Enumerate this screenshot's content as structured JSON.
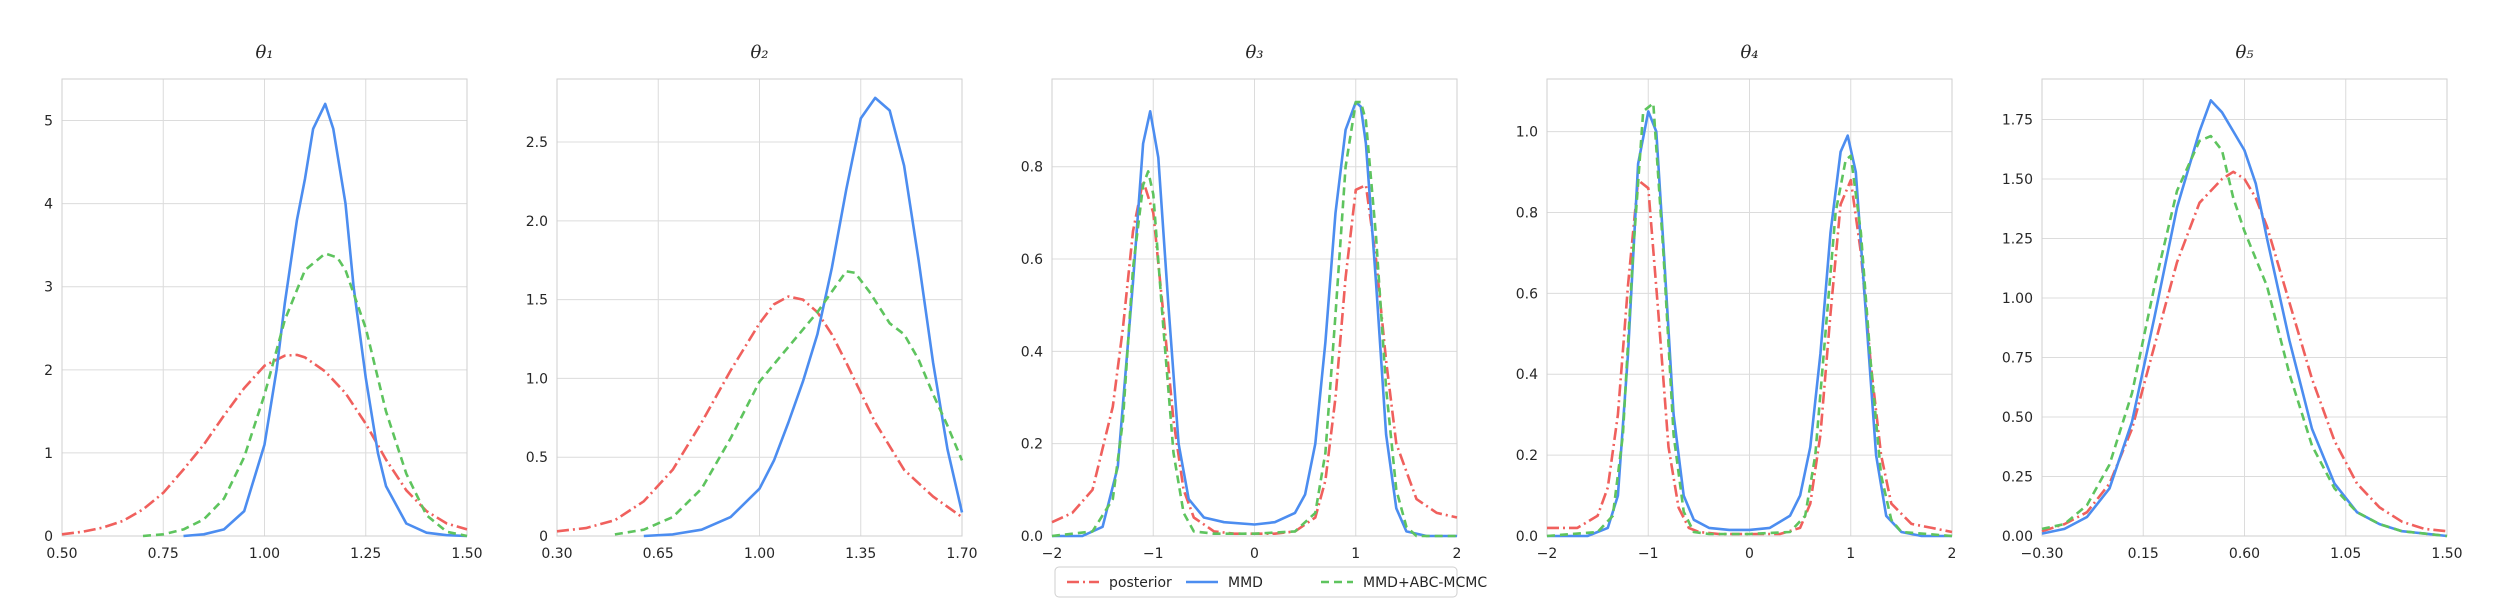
{
  "figure": {
    "background": "#ffffff",
    "grid_color": "#dcdcdc",
    "frame_color": "#cfcfcf"
  },
  "legend": {
    "placement": "bottom-center",
    "entries": [
      {
        "label": "posterior",
        "color": "#f0605d",
        "style": "dashdot"
      },
      {
        "label": "MMD",
        "color": "#4c8df0",
        "style": "solid"
      },
      {
        "label": "MMD+ABC-MCMC",
        "color": "#5ec45e",
        "style": "dashed"
      }
    ]
  },
  "chart_data": [
    {
      "type": "line",
      "title": "θ₁",
      "grid": true,
      "xlim": [
        0.5,
        1.5
      ],
      "ylim": [
        0,
        5.5
      ],
      "xticks": [
        0.5,
        0.75,
        1.0,
        1.25,
        1.5
      ],
      "xtick_labels": [
        "0.50",
        "0.75",
        "1.00",
        "1.25",
        "1.50"
      ],
      "yticks": [
        0,
        1,
        2,
        3,
        4,
        5
      ],
      "ytick_labels": [
        "0",
        "1",
        "2",
        "3",
        "4",
        "5"
      ],
      "series": [
        {
          "name": "posterior",
          "x": [
            0.5,
            0.55,
            0.6,
            0.65,
            0.7,
            0.75,
            0.8,
            0.85,
            0.9,
            0.95,
            1.0,
            1.05,
            1.08,
            1.1,
            1.15,
            1.2,
            1.25,
            1.3,
            1.35,
            1.4,
            1.45,
            1.5
          ],
          "y": [
            0.02,
            0.05,
            0.1,
            0.18,
            0.32,
            0.52,
            0.8,
            1.1,
            1.45,
            1.78,
            2.05,
            2.17,
            2.18,
            2.15,
            1.98,
            1.72,
            1.35,
            0.92,
            0.55,
            0.3,
            0.15,
            0.08
          ]
        },
        {
          "name": "MMD",
          "x": [
            0.8,
            0.85,
            0.9,
            0.95,
            1.0,
            1.03,
            1.05,
            1.08,
            1.1,
            1.12,
            1.15,
            1.17,
            1.2,
            1.22,
            1.25,
            1.28,
            1.3,
            1.35,
            1.4,
            1.45,
            1.5
          ],
          "y": [
            0.0,
            0.02,
            0.08,
            0.3,
            1.1,
            2.0,
            2.8,
            3.8,
            4.3,
            4.9,
            5.2,
            4.9,
            4.0,
            3.0,
            1.9,
            1.0,
            0.6,
            0.15,
            0.04,
            0.01,
            0.0
          ]
        },
        {
          "name": "MMD+ABC-MCMC",
          "x": [
            0.7,
            0.75,
            0.8,
            0.85,
            0.9,
            0.95,
            1.0,
            1.05,
            1.1,
            1.15,
            1.18,
            1.2,
            1.25,
            1.3,
            1.35,
            1.4,
            1.45,
            1.5
          ],
          "y": [
            0.0,
            0.02,
            0.08,
            0.2,
            0.45,
            0.95,
            1.7,
            2.6,
            3.2,
            3.4,
            3.35,
            3.2,
            2.5,
            1.5,
            0.75,
            0.25,
            0.05,
            0.0
          ]
        }
      ]
    },
    {
      "type": "line",
      "title": "θ₂",
      "grid": true,
      "xlim": [
        0.3,
        1.7
      ],
      "ylim": [
        0,
        2.9
      ],
      "xticks": [
        0.3,
        0.65,
        1.0,
        1.35,
        1.7
      ],
      "xtick_labels": [
        "0.30",
        "0.65",
        "1.00",
        "1.35",
        "1.70"
      ],
      "yticks": [
        0,
        0.5,
        1.0,
        1.5,
        2.0,
        2.5
      ],
      "ytick_labels": [
        "0",
        "0.5",
        "1.0",
        "1.5",
        "2.0",
        "2.5"
      ],
      "series": [
        {
          "name": "posterior",
          "x": [
            0.3,
            0.4,
            0.5,
            0.6,
            0.7,
            0.8,
            0.9,
            1.0,
            1.05,
            1.1,
            1.15,
            1.2,
            1.25,
            1.3,
            1.4,
            1.5,
            1.6,
            1.7
          ],
          "y": [
            0.03,
            0.05,
            0.1,
            0.22,
            0.42,
            0.72,
            1.05,
            1.35,
            1.47,
            1.52,
            1.5,
            1.42,
            1.28,
            1.1,
            0.72,
            0.42,
            0.25,
            0.12
          ]
        },
        {
          "name": "MMD",
          "x": [
            0.6,
            0.7,
            0.8,
            0.9,
            1.0,
            1.05,
            1.1,
            1.15,
            1.2,
            1.25,
            1.3,
            1.35,
            1.4,
            1.45,
            1.5,
            1.55,
            1.6,
            1.65,
            1.7
          ],
          "y": [
            0.0,
            0.01,
            0.04,
            0.12,
            0.3,
            0.48,
            0.72,
            0.98,
            1.28,
            1.7,
            2.2,
            2.65,
            2.78,
            2.7,
            2.35,
            1.75,
            1.1,
            0.55,
            0.15
          ]
        },
        {
          "name": "MMD+ABC-MCMC",
          "x": [
            0.5,
            0.6,
            0.7,
            0.8,
            0.9,
            1.0,
            1.1,
            1.2,
            1.25,
            1.3,
            1.33,
            1.38,
            1.45,
            1.5,
            1.55,
            1.6,
            1.65,
            1.7
          ],
          "y": [
            0.01,
            0.04,
            0.12,
            0.3,
            0.62,
            0.98,
            1.2,
            1.42,
            1.55,
            1.68,
            1.67,
            1.55,
            1.35,
            1.28,
            1.12,
            0.9,
            0.7,
            0.48
          ]
        }
      ]
    },
    {
      "type": "line",
      "title": "θ₃",
      "grid": true,
      "xlim": [
        -2,
        2
      ],
      "ylim": [
        0,
        0.99
      ],
      "xticks": [
        -2,
        -1,
        0,
        1,
        2
      ],
      "xtick_labels": [
        "−2",
        "−1",
        "0",
        "1",
        "2"
      ],
      "yticks": [
        0,
        0.2,
        0.4,
        0.6,
        0.8
      ],
      "ytick_labels": [
        "0.0",
        "0.2",
        "0.4",
        "0.6",
        "0.8"
      ],
      "series": [
        {
          "name": "posterior",
          "x": [
            -2.0,
            -1.8,
            -1.6,
            -1.4,
            -1.3,
            -1.2,
            -1.1,
            -1.0,
            -0.9,
            -0.8,
            -0.7,
            -0.6,
            -0.4,
            -0.2,
            0.0,
            0.2,
            0.4,
            0.6,
            0.7,
            0.8,
            0.9,
            1.0,
            1.1,
            1.2,
            1.3,
            1.4,
            1.6,
            1.8,
            2.0
          ],
          "y": [
            0.03,
            0.05,
            0.1,
            0.28,
            0.45,
            0.66,
            0.77,
            0.7,
            0.48,
            0.25,
            0.1,
            0.04,
            0.01,
            0.005,
            0.005,
            0.005,
            0.01,
            0.04,
            0.12,
            0.3,
            0.56,
            0.75,
            0.76,
            0.6,
            0.38,
            0.2,
            0.08,
            0.05,
            0.04
          ]
        },
        {
          "name": "MMD",
          "x": [
            -2.0,
            -1.7,
            -1.5,
            -1.35,
            -1.2,
            -1.1,
            -1.03,
            -0.95,
            -0.85,
            -0.75,
            -0.65,
            -0.5,
            -0.3,
            0.0,
            0.2,
            0.4,
            0.5,
            0.6,
            0.7,
            0.8,
            0.9,
            1.0,
            1.05,
            1.1,
            1.2,
            1.3,
            1.4,
            1.5,
            1.7,
            2.0
          ],
          "y": [
            0.0,
            0.0,
            0.02,
            0.15,
            0.55,
            0.85,
            0.92,
            0.82,
            0.5,
            0.2,
            0.08,
            0.04,
            0.03,
            0.025,
            0.03,
            0.05,
            0.09,
            0.2,
            0.42,
            0.7,
            0.88,
            0.94,
            0.93,
            0.85,
            0.55,
            0.22,
            0.06,
            0.01,
            0.0,
            0.0
          ]
        },
        {
          "name": "MMD+ABC-MCMC",
          "x": [
            -2.0,
            -1.6,
            -1.4,
            -1.3,
            -1.2,
            -1.1,
            -1.05,
            -1.0,
            -0.9,
            -0.8,
            -0.7,
            -0.6,
            -0.4,
            0.0,
            0.4,
            0.6,
            0.7,
            0.8,
            0.9,
            1.0,
            1.05,
            1.1,
            1.2,
            1.3,
            1.4,
            1.5,
            1.6,
            2.0
          ],
          "y": [
            0.0,
            0.01,
            0.08,
            0.25,
            0.58,
            0.76,
            0.79,
            0.74,
            0.45,
            0.18,
            0.05,
            0.01,
            0.005,
            0.005,
            0.01,
            0.05,
            0.18,
            0.48,
            0.8,
            0.94,
            0.94,
            0.9,
            0.65,
            0.32,
            0.1,
            0.02,
            0.0,
            0.0
          ]
        }
      ]
    },
    {
      "type": "line",
      "title": "θ₄",
      "grid": true,
      "xlim": [
        -2,
        2
      ],
      "ylim": [
        0,
        1.13
      ],
      "xticks": [
        -2,
        -1,
        0,
        1,
        2
      ],
      "xtick_labels": [
        "−2",
        "−1",
        "0",
        "1",
        "2"
      ],
      "yticks": [
        0,
        0.2,
        0.4,
        0.6,
        0.8,
        1.0
      ],
      "ytick_labels": [
        "0.0",
        "0.2",
        "0.4",
        "0.6",
        "0.8",
        "1.0"
      ],
      "series": [
        {
          "name": "posterior",
          "x": [
            -2.0,
            -1.7,
            -1.5,
            -1.4,
            -1.3,
            -1.2,
            -1.1,
            -1.0,
            -0.9,
            -0.8,
            -0.7,
            -0.6,
            -0.5,
            -0.3,
            0.0,
            0.3,
            0.5,
            0.6,
            0.7,
            0.8,
            0.9,
            1.0,
            1.1,
            1.2,
            1.3,
            1.4,
            1.6,
            1.8,
            2.0
          ],
          "y": [
            0.02,
            0.02,
            0.05,
            0.12,
            0.3,
            0.62,
            0.88,
            0.86,
            0.55,
            0.22,
            0.07,
            0.02,
            0.01,
            0.005,
            0.005,
            0.005,
            0.02,
            0.08,
            0.25,
            0.55,
            0.82,
            0.88,
            0.7,
            0.42,
            0.2,
            0.08,
            0.03,
            0.02,
            0.01
          ]
        },
        {
          "name": "MMD",
          "x": [
            -2.0,
            -1.6,
            -1.4,
            -1.3,
            -1.2,
            -1.1,
            -1.0,
            -0.92,
            -0.85,
            -0.75,
            -0.65,
            -0.55,
            -0.4,
            -0.2,
            0.0,
            0.2,
            0.4,
            0.5,
            0.6,
            0.7,
            0.8,
            0.9,
            0.97,
            1.05,
            1.15,
            1.25,
            1.35,
            1.5,
            1.7,
            2.0
          ],
          "y": [
            0.0,
            0.0,
            0.02,
            0.1,
            0.45,
            0.92,
            1.05,
            1.0,
            0.72,
            0.3,
            0.1,
            0.04,
            0.02,
            0.015,
            0.015,
            0.02,
            0.05,
            0.1,
            0.22,
            0.45,
            0.75,
            0.95,
            0.99,
            0.9,
            0.55,
            0.2,
            0.05,
            0.01,
            0.0,
            0.0
          ]
        },
        {
          "name": "MMD+ABC-MCMC",
          "x": [
            -2.0,
            -1.5,
            -1.35,
            -1.25,
            -1.15,
            -1.05,
            -0.95,
            -0.85,
            -0.75,
            -0.65,
            -0.55,
            -0.4,
            0.0,
            0.4,
            0.55,
            0.65,
            0.75,
            0.85,
            0.95,
            1.0,
            1.1,
            1.2,
            1.3,
            1.4,
            1.5,
            2.0
          ],
          "y": [
            0.0,
            0.01,
            0.05,
            0.25,
            0.7,
            1.05,
            1.07,
            0.7,
            0.25,
            0.06,
            0.01,
            0.005,
            0.005,
            0.01,
            0.05,
            0.2,
            0.5,
            0.8,
            0.93,
            0.94,
            0.75,
            0.42,
            0.15,
            0.04,
            0.01,
            0.0
          ]
        }
      ]
    },
    {
      "type": "line",
      "title": "θ₅",
      "grid": true,
      "xlim": [
        -0.3,
        1.5
      ],
      "ylim": [
        0,
        1.92
      ],
      "xticks": [
        -0.3,
        0.15,
        0.6,
        1.05,
        1.5
      ],
      "xtick_labels": [
        "−0.30",
        "0.15",
        "0.60",
        "1.05",
        "1.50"
      ],
      "yticks": [
        0,
        0.25,
        0.5,
        0.75,
        1.0,
        1.25,
        1.5,
        1.75
      ],
      "ytick_labels": [
        "0.00",
        "0.25",
        "0.50",
        "0.75",
        "1.00",
        "1.25",
        "1.50",
        "1.75"
      ],
      "series": [
        {
          "name": "posterior",
          "x": [
            -0.3,
            -0.2,
            -0.1,
            0.0,
            0.1,
            0.2,
            0.3,
            0.4,
            0.5,
            0.55,
            0.6,
            0.65,
            0.7,
            0.8,
            0.9,
            1.0,
            1.1,
            1.2,
            1.3,
            1.4,
            1.5
          ],
          "y": [
            0.02,
            0.05,
            0.1,
            0.22,
            0.45,
            0.8,
            1.15,
            1.4,
            1.5,
            1.53,
            1.5,
            1.42,
            1.3,
            0.98,
            0.66,
            0.4,
            0.22,
            0.12,
            0.06,
            0.03,
            0.02
          ]
        },
        {
          "name": "MMD",
          "x": [
            -0.3,
            -0.2,
            -0.1,
            0.0,
            0.1,
            0.2,
            0.3,
            0.4,
            0.45,
            0.5,
            0.55,
            0.6,
            0.65,
            0.7,
            0.8,
            0.9,
            1.0,
            1.1,
            1.2,
            1.3,
            1.4,
            1.5
          ],
          "y": [
            0.01,
            0.03,
            0.08,
            0.2,
            0.48,
            0.92,
            1.38,
            1.7,
            1.83,
            1.78,
            1.7,
            1.62,
            1.48,
            1.25,
            0.82,
            0.45,
            0.22,
            0.1,
            0.05,
            0.02,
            0.01,
            0.0
          ]
        },
        {
          "name": "MMD+ABC-MCMC",
          "x": [
            -0.3,
            -0.2,
            -0.1,
            0.0,
            0.1,
            0.2,
            0.3,
            0.4,
            0.45,
            0.5,
            0.55,
            0.6,
            0.7,
            0.8,
            0.9,
            1.0,
            1.1,
            1.2,
            1.3,
            1.4,
            1.5
          ],
          "y": [
            0.03,
            0.05,
            0.13,
            0.3,
            0.6,
            1.05,
            1.45,
            1.66,
            1.68,
            1.62,
            1.42,
            1.28,
            1.05,
            0.68,
            0.38,
            0.2,
            0.1,
            0.05,
            0.02,
            0.01,
            0.0
          ]
        }
      ]
    }
  ]
}
